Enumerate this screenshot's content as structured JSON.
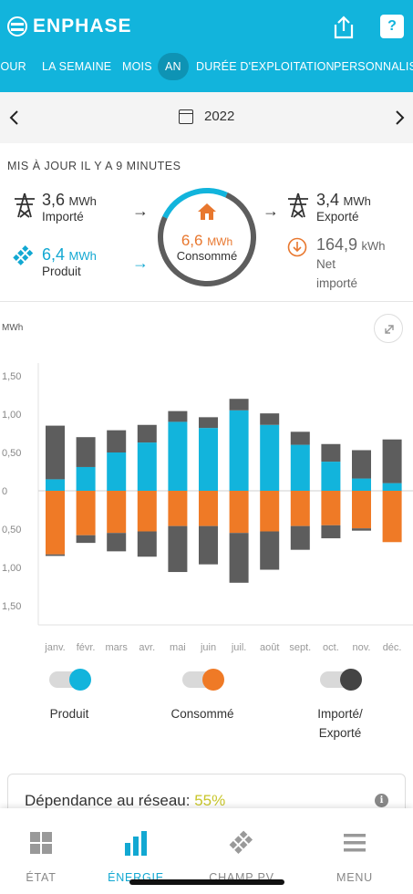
{
  "app": {
    "brand": "ENPHASE"
  },
  "colors": {
    "header": "#12b4dc",
    "produced": "#12b4dc",
    "consumed": "#ef7a26",
    "grid": "#5d5d5d",
    "accent_green": "#c8c52a"
  },
  "tabs": [
    {
      "label": "JOUR",
      "active": false
    },
    {
      "label": "LA SEMAINE",
      "active": false
    },
    {
      "label": "MOIS",
      "active": false
    },
    {
      "label": "AN",
      "active": true
    },
    {
      "label": "DURÉE D'EXPLOITATION",
      "active": false
    },
    {
      "label": "PERSONNALISÉ",
      "active": false
    }
  ],
  "date": {
    "label": "2022"
  },
  "summary": {
    "updated": "MIS À JOUR IL Y A 9 MINUTES",
    "imported": {
      "value": "3,6",
      "unit": "MWh",
      "label": "Importé"
    },
    "produced": {
      "value": "6,4",
      "unit": "MWh",
      "label": "Produit"
    },
    "consumed": {
      "value": "6,6",
      "unit": "MWh",
      "label": "Consommé"
    },
    "exported": {
      "value": "3,4",
      "unit": "MWh",
      "label": "Exporté"
    },
    "net": {
      "value": "164,9",
      "unit": "kWh",
      "label_line1": "Net",
      "label_line2": "importé"
    }
  },
  "chart_data": {
    "type": "bar",
    "ylabel": "MWh",
    "ylim": [
      -1.5,
      1.5
    ],
    "yticks": [
      "1,50",
      "1,00",
      "0,50",
      "0",
      "0,50",
      "1,00",
      "1,50"
    ],
    "categories": [
      "janv.",
      "févr.",
      "mars",
      "avr.",
      "mai",
      "juin",
      "juil.",
      "août",
      "sept.",
      "oct.",
      "nov.",
      "déc."
    ],
    "series": [
      {
        "name": "Produit",
        "values": [
          0.15,
          0.31,
          0.5,
          0.63,
          0.9,
          0.82,
          1.05,
          0.86,
          0.6,
          0.38,
          0.16,
          0.1
        ]
      },
      {
        "name": "Importé/Exporté (export)",
        "values": [
          0.7,
          0.39,
          0.29,
          0.23,
          0.14,
          0.14,
          0.15,
          0.15,
          0.17,
          0.23,
          0.37,
          0.57
        ]
      },
      {
        "name": "Consommé",
        "values": [
          -0.83,
          -0.58,
          -0.55,
          -0.53,
          -0.46,
          -0.46,
          -0.55,
          -0.53,
          -0.46,
          -0.45,
          -0.49,
          -0.67
        ]
      },
      {
        "name": "Importé/Exporté (import)",
        "values": [
          -0.02,
          -0.1,
          -0.24,
          -0.33,
          -0.6,
          -0.5,
          -0.65,
          -0.5,
          -0.31,
          -0.17,
          -0.03,
          0
        ]
      }
    ]
  },
  "toggles": [
    {
      "label": "Produit",
      "color": "#12b4dc"
    },
    {
      "label": "Consommé",
      "color": "#ef7a26"
    },
    {
      "label_line1": "Importé/",
      "label_line2": "Exporté",
      "color": "#444444"
    }
  ],
  "dependence": {
    "label": "Dépendance au réseau:",
    "value": "55%"
  },
  "bottom_nav": [
    {
      "label": "ÉTAT",
      "icon": "grid-icon",
      "active": false
    },
    {
      "label": "ÉNERGIE",
      "icon": "bar-chart-icon",
      "active": true
    },
    {
      "label": "CHAMP PV",
      "icon": "solar-panel-icon",
      "active": false
    },
    {
      "label": "MENU",
      "icon": "hamburger-icon",
      "active": false
    }
  ]
}
